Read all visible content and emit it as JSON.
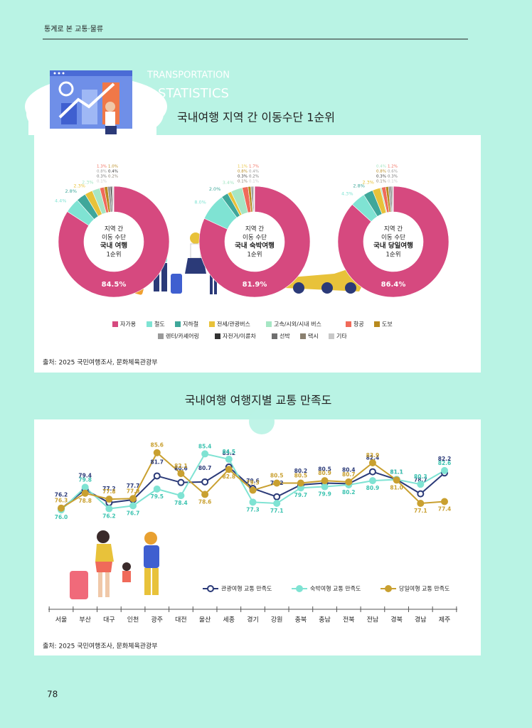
{
  "header": "통계로 본 교통·물류",
  "banner": [
    "TRANSPORTATION",
    "STATISTICS"
  ],
  "page_number": "78",
  "chart_data": [
    {
      "type": "donut",
      "title": "국내여행 지역 간 이동수단 1순위",
      "categories": [
        "자가용",
        "철도",
        "지하철",
        "전세/관광버스",
        "고속/시외/시내 버스",
        "항공",
        "도보",
        "렌터/카셰어링",
        "자전거/이륜차",
        "선박",
        "택시",
        "기타"
      ],
      "colors": [
        "#d6497f",
        "#7fe3d3",
        "#3fa79a",
        "#e8c23a",
        "#a6e6c4",
        "#f06a5a",
        "#b88a1e",
        "#9a9a9a",
        "#333333",
        "#6f6f6f",
        "#8a8070",
        "#c8c8c8"
      ],
      "donuts": [
        {
          "center": [
            "지역 간",
            "이동 수단",
            "국내 여행",
            "1순위"
          ],
          "values": [
            84.5,
            4.4,
            2.8,
            2.3,
            2.3,
            1.3,
            1.0,
            0.8,
            0.4,
            0.3,
            0.2,
            0.1
          ],
          "value_labels": [
            "84.5%",
            "4.4%",
            "2.8%",
            "2.3%",
            "2.3%",
            "1.3%",
            "1.0%",
            "0.8%",
            "0.4%",
            "0.3%",
            "0.2%",
            "0.1%"
          ]
        },
        {
          "center": [
            "지역 간",
            "이동 수단",
            "국내 숙박여행",
            "1순위"
          ],
          "values": [
            81.9,
            8.0,
            2.0,
            1.1,
            3.4,
            1.7,
            0.8,
            0.4,
            0.3,
            0.2,
            0.1,
            0.1
          ],
          "value_labels": [
            "81.9%",
            "8.0%",
            "2.0%",
            "1.1%",
            "3.4%",
            "1.7%",
            "0.8%",
            "0.4%",
            "0.3%",
            "0.2%",
            "0.1%",
            "0.1%"
          ]
        },
        {
          "center": [
            "지역 간",
            "이동 수단",
            "국내 당일여행",
            "1순위"
          ],
          "values": [
            86.4,
            4.3,
            2.8,
            2.3,
            0.4,
            1.2,
            0.8,
            0.6,
            0.3,
            0.3,
            0.1,
            0.1
          ],
          "value_labels": [
            "86.4%",
            "4.3%",
            "2.8%",
            "2.3%",
            "0.4%",
            "1.2%",
            "0.8%",
            "0.6%",
            "0.3%",
            "0.3%",
            "0.1%",
            "0.1%"
          ]
        }
      ],
      "source": "출처: 2025 국민여행조사, 문화체육관광부"
    },
    {
      "type": "line",
      "title": "국내여행 여행지별 교통 만족도",
      "categories": [
        "서울",
        "부산",
        "대구",
        "인천",
        "광주",
        "대전",
        "울산",
        "세종",
        "경기",
        "강원",
        "충북",
        "충남",
        "전북",
        "전남",
        "경북",
        "경남",
        "제주"
      ],
      "ylim": [
        74,
        87
      ],
      "series": [
        {
          "name": "관광여행 교통 만족도",
          "color": "#2b3a78",
          "values": [
            76.2,
            79.4,
            77.2,
            77.7,
            81.7,
            80.6,
            80.7,
            83.2,
            79.6,
            78.2,
            80.2,
            80.5,
            80.4,
            82.4,
            81.1,
            78.7,
            82.2
          ],
          "value_labels": [
            "76.2",
            "79.4",
            "77.2",
            "77.7",
            "81.7",
            "80.6",
            "80.7",
            "83.2",
            "79.6",
            "78.2",
            "80.2",
            "80.5",
            "80.4",
            "82.4",
            "81.1",
            "78.7",
            "82.2"
          ]
        },
        {
          "name": "숙박여행 교통 만족도",
          "color": "#7fe3d3",
          "values": [
            76.0,
            79.8,
            76.2,
            76.7,
            79.5,
            78.4,
            85.4,
            84.5,
            77.3,
            77.1,
            79.7,
            79.9,
            80.2,
            80.9,
            81.1,
            80.3,
            82.6
          ],
          "value_labels": [
            "76.0",
            "79.8",
            "76.2",
            "76.7",
            "79.5",
            "78.4",
            "85.4",
            "84.5",
            "77.3",
            "77.1",
            "79.7",
            "79.9",
            "80.2",
            "80.9",
            "81.1",
            "80.3",
            "82.6"
          ]
        },
        {
          "name": "당일여행 교통 만족도",
          "color": "#c9a030",
          "values": [
            76.3,
            78.8,
            77.8,
            77.9,
            85.6,
            82.1,
            78.6,
            82.8,
            79.3,
            80.5,
            80.5,
            80.9,
            80.7,
            83.9,
            81.0,
            77.1,
            77.4
          ],
          "value_labels": [
            "76.3",
            "78.8",
            "77.8",
            "77.9",
            "85.6",
            "82.1",
            "78.6",
            "82.8",
            "79.3",
            "80.5",
            "80.5",
            "80.9",
            "80.7",
            "83.9",
            "81.0",
            "77.1",
            "77.4"
          ]
        }
      ],
      "source": "출처: 2025 국민여행조사, 문화체육관광부"
    }
  ]
}
